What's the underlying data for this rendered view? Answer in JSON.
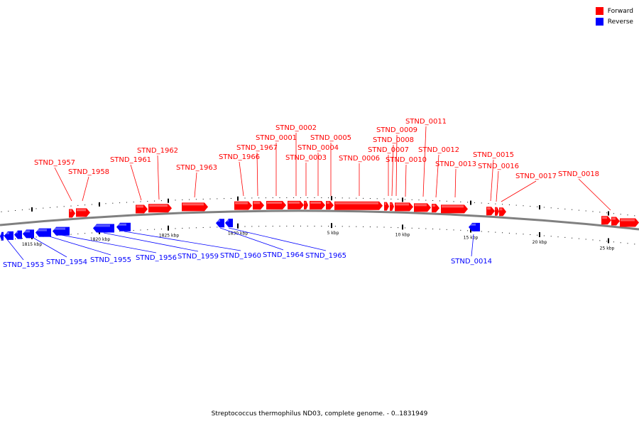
{
  "legend": {
    "forward": {
      "label": "Forward",
      "color": "#ff0000"
    },
    "reverse": {
      "label": "Reverse",
      "color": "#0000ff"
    }
  },
  "caption": "Streptococcus thermophilus ND03, complete genome. - 0..1831949",
  "backbone_color": "#808080",
  "ticks": [
    "1815 kbp",
    "1820 kbp",
    "1825 kbp",
    "1830 kbp",
    "5 kbp",
    "10 kbp",
    "15 kbp",
    "20 kbp",
    "25 kbp"
  ],
  "gene_labels": [
    "STND_1953",
    "STND_1954",
    "STND_1955",
    "STND_1956",
    "STND_1957",
    "STND_1958",
    "STND_1959",
    "STND_1960",
    "STND_1961",
    "STND_1962",
    "STND_1963",
    "STND_1964",
    "STND_1965",
    "STND_1966",
    "STND_1967",
    "STND_0001",
    "STND_0002",
    "STND_0003",
    "STND_0004",
    "STND_0005",
    "STND_0006",
    "STND_0007",
    "STND_0008",
    "STND_0009",
    "STND_0010",
    "STND_0011",
    "STND_0012",
    "STND_0013",
    "STND_0014",
    "STND_0015",
    "STND_0016",
    "STND_0017",
    "STND_0018"
  ]
}
